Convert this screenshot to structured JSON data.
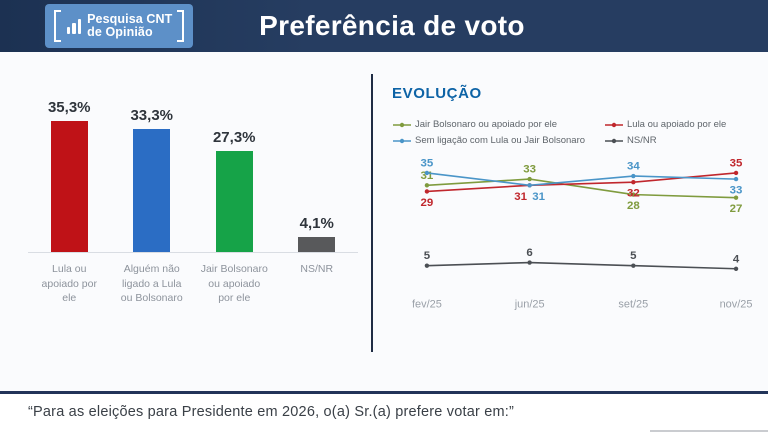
{
  "header": {
    "logo_line1": "Pesquisa CNT",
    "logo_line2": "de Opinião",
    "title": "Preferência de voto"
  },
  "evolution": {
    "title": "EVOLUÇÃO"
  },
  "footer": {
    "question": "“Para as eleições para Presidente em 2026, o(a) Sr.(a) prefere votar em:”"
  },
  "colors": {
    "header_bg": "#263d61",
    "logo_bg": "#5d90c8",
    "evolution_title": "#0d63a6",
    "divider": "#1f2c44",
    "axis_label": "#9aa0a8"
  },
  "chart_data": [
    {
      "type": "bar",
      "title": "Preferência de voto",
      "categories": [
        "Lula ou\napoiado por\nele",
        "Alguém não\nligado a Lula\nou Bolsonaro",
        "Jair Bolsonaro\nou apoiado\npor ele",
        "NS/NR"
      ],
      "values": [
        35.3,
        33.3,
        27.3,
        4.1
      ],
      "value_labels": [
        "35,3%",
        "33,3%",
        "27,3%",
        "4,1%"
      ],
      "colors": [
        "#bf1217",
        "#2b6dc4",
        "#16a348",
        "#58595b"
      ],
      "ylim": [
        0,
        40
      ],
      "grid": false
    },
    {
      "type": "line",
      "title": "EVOLUÇÃO",
      "x": [
        "fev/25",
        "jun/25",
        "set/25",
        "nov/25"
      ],
      "series": [
        {
          "name": "Jair Bolsonaro ou apoiado por ele",
          "color": "#7f9b3e",
          "values": [
            31,
            33,
            28,
            27
          ],
          "label_pos": [
            "above",
            "above",
            "below",
            "below"
          ],
          "label_dx": [
            0,
            0,
            0,
            0
          ]
        },
        {
          "name": "Lula ou apoiado por ele",
          "color": "#c0272d",
          "values": [
            29,
            31,
            32,
            35
          ],
          "label_pos": [
            "below",
            "below",
            "below",
            "above"
          ],
          "label_dx": [
            0,
            -9,
            0,
            0
          ]
        },
        {
          "name": "Sem ligação com Lula ou Jair Bolsonaro",
          "color": "#4a95c8",
          "values": [
            35,
            31,
            34,
            33
          ],
          "label_pos": [
            "above",
            "below",
            "above",
            "below"
          ],
          "label_dx": [
            0,
            9,
            0,
            0
          ]
        },
        {
          "name": "NS/NR",
          "color": "#4b4f54",
          "values": [
            5,
            6,
            5,
            4
          ],
          "label_pos": [
            "above",
            "above",
            "above",
            "above"
          ],
          "label_dx": [
            0,
            0,
            0,
            0
          ]
        }
      ],
      "legend_position": "top",
      "grid": false
    }
  ]
}
